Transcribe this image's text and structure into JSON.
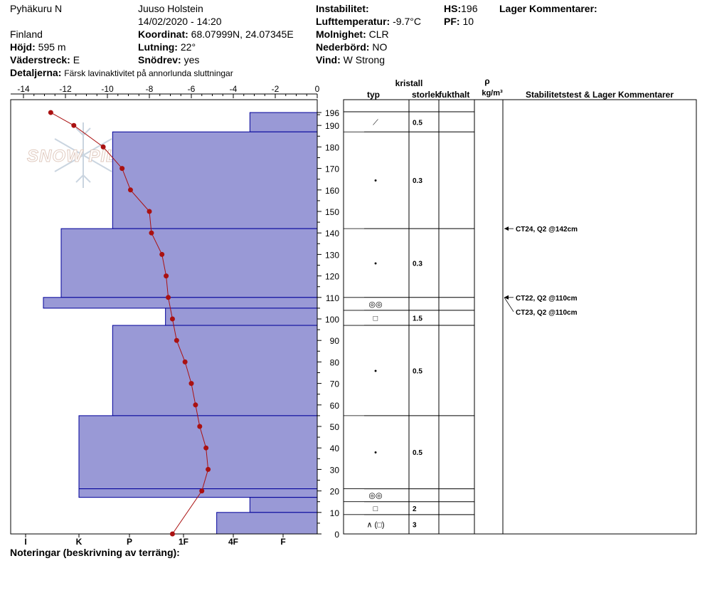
{
  "header": {
    "location": "Pyhäkuru N",
    "country": "Finland",
    "elevation_label": "Höjd:",
    "elevation": "595 m",
    "aspect_label": "Väderstreck:",
    "aspect": "E",
    "details_label": "Detaljerna:",
    "details": "Färsk lavinaktivitet på annorlunda sluttningar",
    "observer": "Juuso Holstein",
    "datetime": "14/02/2020 - 14:20",
    "coord_label": "Koordinat:",
    "coord": "68.07999N, 24.07345E",
    "slope_label": "Lutning:",
    "slope": "22°",
    "drift_label": "Snödrev:",
    "drift": "yes",
    "instab_label": "Instabilitet:",
    "instab": "",
    "airtemp_label": "Lufttemperatur:",
    "airtemp": "-9.7°C",
    "sky_label": "Molnighet:",
    "sky": "CLR",
    "precip_label": "Nederbörd:",
    "precip": "NO",
    "wind_label": "Vind:",
    "wind": "W Strong",
    "hs_label": "HS:",
    "hs": "196",
    "pf_label": "PF:",
    "pf": "10",
    "layer_comments_label": "Lager Kommentarer:"
  },
  "footer": {
    "notes_label": "Noteringar (beskrivning av terräng):"
  },
  "watermark": "SNOW PILOT",
  "columns": {
    "crystal": "kristall",
    "type": "typ",
    "size": "storlek",
    "moisture": "fukthalt",
    "rho": "ρ",
    "density": "kg/m³",
    "stability": "Stabilitetstest & Lager Kommentarer"
  },
  "colors": {
    "hardness_fill": "#9999d6",
    "hardness_stroke": "#000099",
    "temp_line": "#aa1111"
  },
  "chart_data": {
    "type": "snow-profile",
    "height_axis": {
      "min": 0,
      "max": 196,
      "ticks": [
        0,
        10,
        20,
        30,
        40,
        50,
        60,
        70,
        80,
        90,
        100,
        110,
        120,
        130,
        140,
        150,
        160,
        170,
        180,
        190,
        196
      ]
    },
    "temp_axis": {
      "min": -14,
      "max": 0,
      "ticks": [
        -14,
        -12,
        -10,
        -8,
        -6,
        -4,
        -2,
        0
      ]
    },
    "hardness_scale": [
      "I",
      "K",
      "P",
      "1F",
      "4F",
      "F"
    ],
    "hardness_layers": [
      {
        "top": 196,
        "bottom": 187,
        "hardness": "4F+"
      },
      {
        "top": 187,
        "bottom": 142,
        "hardness": "P-"
      },
      {
        "top": 142,
        "bottom": 110,
        "hardness": "K-"
      },
      {
        "top": 110,
        "bottom": 105,
        "hardness": "I+"
      },
      {
        "top": 105,
        "bottom": 97,
        "hardness": "1F-"
      },
      {
        "top": 97,
        "bottom": 55,
        "hardness": "P-"
      },
      {
        "top": 55,
        "bottom": 21,
        "hardness": "K"
      },
      {
        "top": 21,
        "bottom": 17,
        "hardness": "K"
      },
      {
        "top": 17,
        "bottom": 10,
        "hardness": "4F+"
      },
      {
        "top": 10,
        "bottom": 0,
        "hardness": "4F-"
      }
    ],
    "temperature": [
      {
        "h": 196,
        "t": -12.7
      },
      {
        "h": 190,
        "t": -11.6
      },
      {
        "h": 180,
        "t": -10.2
      },
      {
        "h": 170,
        "t": -9.3
      },
      {
        "h": 160,
        "t": -8.9
      },
      {
        "h": 150,
        "t": -8.0
      },
      {
        "h": 140,
        "t": -7.9
      },
      {
        "h": 130,
        "t": -7.4
      },
      {
        "h": 120,
        "t": -7.2
      },
      {
        "h": 110,
        "t": -7.1
      },
      {
        "h": 100,
        "t": -6.9
      },
      {
        "h": 90,
        "t": -6.7
      },
      {
        "h": 80,
        "t": -6.3
      },
      {
        "h": 70,
        "t": -6.0
      },
      {
        "h": 60,
        "t": -5.8
      },
      {
        "h": 50,
        "t": -5.6
      },
      {
        "h": 40,
        "t": -5.3
      },
      {
        "h": 30,
        "t": -5.2
      },
      {
        "h": 20,
        "t": -5.5
      },
      {
        "h": 0,
        "t": -6.9
      }
    ],
    "layers": [
      {
        "top": 196,
        "bottom": 187,
        "type": "⟋",
        "size": "0.5"
      },
      {
        "top": 187,
        "bottom": 142,
        "type": "•",
        "size": "0.3"
      },
      {
        "top": 142,
        "bottom": 110,
        "type": "•",
        "size": "0.3"
      },
      {
        "top": 110,
        "bottom": 104,
        "type": "◎◎",
        "size": ""
      },
      {
        "top": 104,
        "bottom": 97,
        "type": "□",
        "size": "1.5"
      },
      {
        "top": 97,
        "bottom": 55,
        "type": "•",
        "size": "0.5"
      },
      {
        "top": 55,
        "bottom": 21,
        "type": "•",
        "size": "0.5"
      },
      {
        "top": 21,
        "bottom": 15,
        "type": "◎◎",
        "size": ""
      },
      {
        "top": 15,
        "bottom": 9,
        "type": "□",
        "size": "2"
      },
      {
        "top": 9,
        "bottom": 0,
        "type": "∧ (□)",
        "size": "3"
      }
    ],
    "stability_tests": [
      {
        "height": 142,
        "label": "CT24, Q2 @142cm"
      },
      {
        "height": 110,
        "label": "CT22, Q2 @110cm"
      },
      {
        "height": 110,
        "label": "CT23, Q2 @110cm"
      }
    ]
  }
}
